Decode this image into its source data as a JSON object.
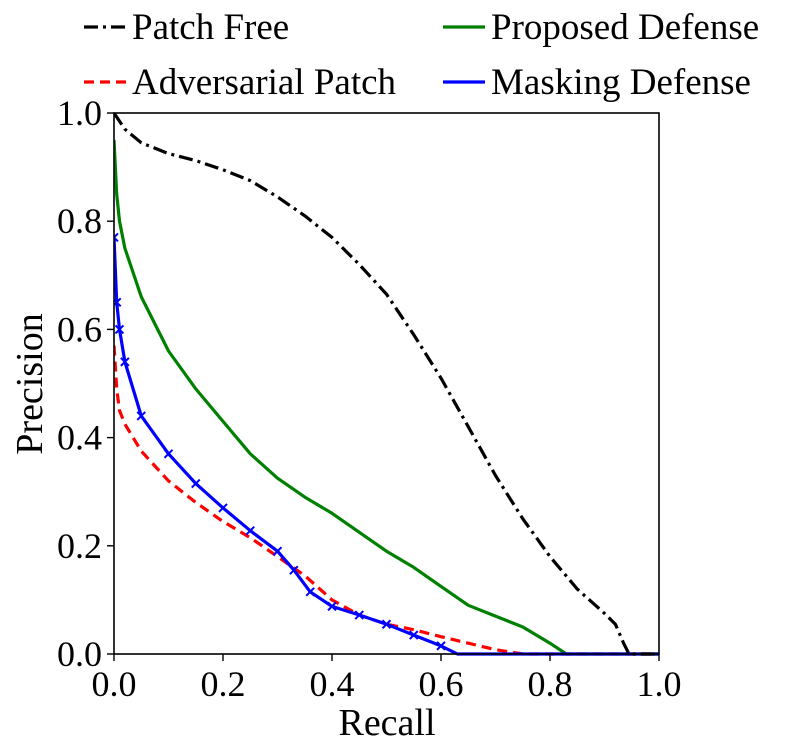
{
  "chart_data": {
    "type": "line",
    "xlabel": "Recall",
    "ylabel": "Precision",
    "xlim": [
      0.0,
      1.0
    ],
    "ylim": [
      0.0,
      1.0
    ],
    "xticks": [
      {
        "value": 0.0,
        "label": "0.0"
      },
      {
        "value": 0.2,
        "label": "0.2"
      },
      {
        "value": 0.4,
        "label": "0.4"
      },
      {
        "value": 0.6,
        "label": "0.6"
      },
      {
        "value": 0.8,
        "label": "0.8"
      },
      {
        "value": 1.0,
        "label": "1.0"
      }
    ],
    "yticks": [
      {
        "value": 0.0,
        "label": "0.0"
      },
      {
        "value": 0.2,
        "label": "0.2"
      },
      {
        "value": 0.4,
        "label": "0.4"
      },
      {
        "value": 0.6,
        "label": "0.6"
      },
      {
        "value": 0.8,
        "label": "0.8"
      },
      {
        "value": 1.0,
        "label": "1.0"
      }
    ],
    "grid": false,
    "legend_position": "top, outside plot, two columns",
    "series": [
      {
        "name": "Patch Free",
        "color": "#000000",
        "style": "dashdot",
        "marker": "none",
        "points": [
          [
            0.0,
            1.0
          ],
          [
            0.02,
            0.97
          ],
          [
            0.05,
            0.945
          ],
          [
            0.1,
            0.925
          ],
          [
            0.15,
            0.912
          ],
          [
            0.2,
            0.895
          ],
          [
            0.25,
            0.875
          ],
          [
            0.3,
            0.845
          ],
          [
            0.35,
            0.81
          ],
          [
            0.4,
            0.77
          ],
          [
            0.45,
            0.72
          ],
          [
            0.5,
            0.665
          ],
          [
            0.55,
            0.59
          ],
          [
            0.6,
            0.51
          ],
          [
            0.65,
            0.42
          ],
          [
            0.7,
            0.33
          ],
          [
            0.75,
            0.25
          ],
          [
            0.8,
            0.18
          ],
          [
            0.85,
            0.12
          ],
          [
            0.9,
            0.075
          ],
          [
            0.92,
            0.055
          ],
          [
            0.935,
            0.02
          ],
          [
            0.945,
            0.0
          ],
          [
            1.0,
            0.0
          ]
        ]
      },
      {
        "name": "Adversarial Patch",
        "color": "#ff0000",
        "style": "dashed",
        "marker": "none",
        "points": [
          [
            0.0,
            0.57
          ],
          [
            0.005,
            0.49
          ],
          [
            0.01,
            0.45
          ],
          [
            0.02,
            0.425
          ],
          [
            0.05,
            0.375
          ],
          [
            0.1,
            0.32
          ],
          [
            0.15,
            0.28
          ],
          [
            0.2,
            0.245
          ],
          [
            0.25,
            0.215
          ],
          [
            0.3,
            0.18
          ],
          [
            0.35,
            0.145
          ],
          [
            0.4,
            0.1
          ],
          [
            0.45,
            0.072
          ],
          [
            0.5,
            0.055
          ],
          [
            0.55,
            0.045
          ],
          [
            0.6,
            0.032
          ],
          [
            0.65,
            0.02
          ],
          [
            0.7,
            0.008
          ],
          [
            0.75,
            0.0
          ],
          [
            1.0,
            0.0
          ]
        ]
      },
      {
        "name": "Proposed Defense",
        "color": "#008000",
        "style": "solid",
        "marker": "none",
        "points": [
          [
            0.0,
            0.95
          ],
          [
            0.005,
            0.85
          ],
          [
            0.01,
            0.8
          ],
          [
            0.02,
            0.75
          ],
          [
            0.05,
            0.66
          ],
          [
            0.1,
            0.56
          ],
          [
            0.15,
            0.49
          ],
          [
            0.2,
            0.43
          ],
          [
            0.25,
            0.37
          ],
          [
            0.3,
            0.325
          ],
          [
            0.35,
            0.29
          ],
          [
            0.4,
            0.26
          ],
          [
            0.45,
            0.225
          ],
          [
            0.5,
            0.19
          ],
          [
            0.55,
            0.16
          ],
          [
            0.6,
            0.125
          ],
          [
            0.65,
            0.09
          ],
          [
            0.7,
            0.07
          ],
          [
            0.75,
            0.05
          ],
          [
            0.8,
            0.02
          ],
          [
            0.83,
            0.0
          ],
          [
            1.0,
            0.0
          ]
        ]
      },
      {
        "name": "Masking Defense",
        "color": "#0000ff",
        "style": "solid",
        "marker": "x",
        "points": [
          [
            0.0,
            0.77
          ],
          [
            0.005,
            0.65
          ],
          [
            0.01,
            0.6
          ],
          [
            0.02,
            0.54
          ],
          [
            0.05,
            0.44
          ],
          [
            0.1,
            0.37
          ],
          [
            0.15,
            0.315
          ],
          [
            0.2,
            0.27
          ],
          [
            0.25,
            0.228
          ],
          [
            0.3,
            0.19
          ],
          [
            0.33,
            0.155
          ],
          [
            0.36,
            0.115
          ],
          [
            0.4,
            0.088
          ],
          [
            0.45,
            0.072
          ],
          [
            0.5,
            0.055
          ],
          [
            0.55,
            0.035
          ],
          [
            0.6,
            0.015
          ],
          [
            0.63,
            0.0
          ],
          [
            1.0,
            0.0
          ]
        ]
      }
    ]
  }
}
